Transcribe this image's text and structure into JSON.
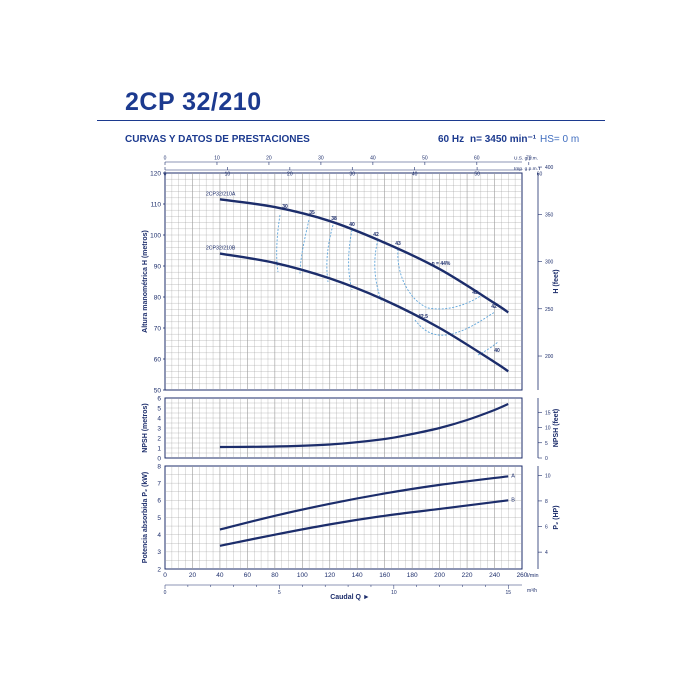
{
  "header": {
    "model": "2CP 32/210",
    "subtitle": "CURVAS Y DATOS DE PRESTACIONES",
    "frequency": "60 Hz",
    "speed": "n= 3450 min⁻¹",
    "suction": "HS= 0 m"
  },
  "colors": {
    "curve": "#1c2d6b",
    "dashed": "#5fa5da",
    "grid": "#9a9a9a",
    "accent": "#1c3a8f"
  },
  "chart_data": [
    {
      "type": "line",
      "name": "H",
      "xlim": [
        0,
        260
      ],
      "ylim": [
        50,
        120
      ],
      "ylabel": "Altura manométrica H (metros)",
      "y2label": "H (feet)",
      "y_ticks": [
        "120",
        "110",
        "100",
        "90",
        "80",
        "70",
        "60",
        "50"
      ],
      "y2_ticks": [
        "400",
        "350",
        "300",
        "250",
        "200"
      ],
      "top_axis_unit": "U.S. g.p.m.",
      "top_axis_unit2": "Imp. g.p.m.",
      "top_ticks_us": [
        "0",
        "10",
        "20",
        "30",
        "40",
        "50",
        "60",
        "70"
      ],
      "top_ticks_imp": [
        "0",
        "10",
        "20",
        "30",
        "40",
        "50",
        "60"
      ],
      "series": [
        {
          "name": "2CP32/210A",
          "x": [
            40,
            80,
            120,
            160,
            200,
            240,
            250
          ],
          "y": [
            111.5,
            109,
            104.5,
            97.5,
            89,
            78,
            75
          ]
        },
        {
          "name": "2CP32/210B",
          "x": [
            40,
            80,
            120,
            160,
            200,
            240,
            250
          ],
          "y": [
            94,
            91,
            86,
            79,
            70,
            59,
            56
          ]
        }
      ],
      "efficiency_labels": [
        "30",
        "35",
        "38",
        "40",
        "42",
        "43",
        "η = 44%",
        "43",
        "42",
        "42.5",
        "40"
      ]
    },
    {
      "type": "line",
      "name": "NPSH",
      "xlim": [
        0,
        260
      ],
      "ylim": [
        0,
        6
      ],
      "ylabel": "NPSH (metros)",
      "y2label": "NPSH (feet)",
      "y_ticks": [
        "6",
        "5",
        "4",
        "3",
        "2",
        "1",
        "0"
      ],
      "y2_ticks": [
        "15",
        "10",
        "5",
        "0"
      ],
      "series": [
        {
          "name": "NPSH",
          "x": [
            40,
            80,
            120,
            160,
            180,
            200,
            220,
            240,
            250
          ],
          "y": [
            1.1,
            1.15,
            1.35,
            1.9,
            2.4,
            3.0,
            3.8,
            4.8,
            5.4
          ]
        }
      ]
    },
    {
      "type": "line",
      "name": "P2",
      "xlim": [
        0,
        260
      ],
      "ylim": [
        2,
        8
      ],
      "ylabel": "Potencia absorbida P₂ (kW)",
      "y2label": "P₂ (HP)",
      "xlabel": "Caudal Q",
      "x_unit": "l/min",
      "x_unit2": "m³/h",
      "y_ticks": [
        "8",
        "7",
        "6",
        "5",
        "4",
        "3",
        "2"
      ],
      "y2_ticks": [
        "10",
        "8",
        "6",
        "4"
      ],
      "x_ticks": [
        "0",
        "20",
        "40",
        "60",
        "80",
        "100",
        "120",
        "140",
        "160",
        "180",
        "200",
        "220",
        "240",
        "260"
      ],
      "bottom_ticks_m3h": [
        "0",
        "5",
        "10",
        "15"
      ],
      "series": [
        {
          "name": "A",
          "x": [
            40,
            80,
            120,
            160,
            200,
            250
          ],
          "y": [
            4.3,
            5.1,
            5.8,
            6.4,
            6.9,
            7.4
          ]
        },
        {
          "name": "B",
          "x": [
            40,
            80,
            120,
            160,
            200,
            250
          ],
          "y": [
            3.35,
            4.0,
            4.6,
            5.1,
            5.5,
            6.0
          ]
        }
      ]
    }
  ]
}
